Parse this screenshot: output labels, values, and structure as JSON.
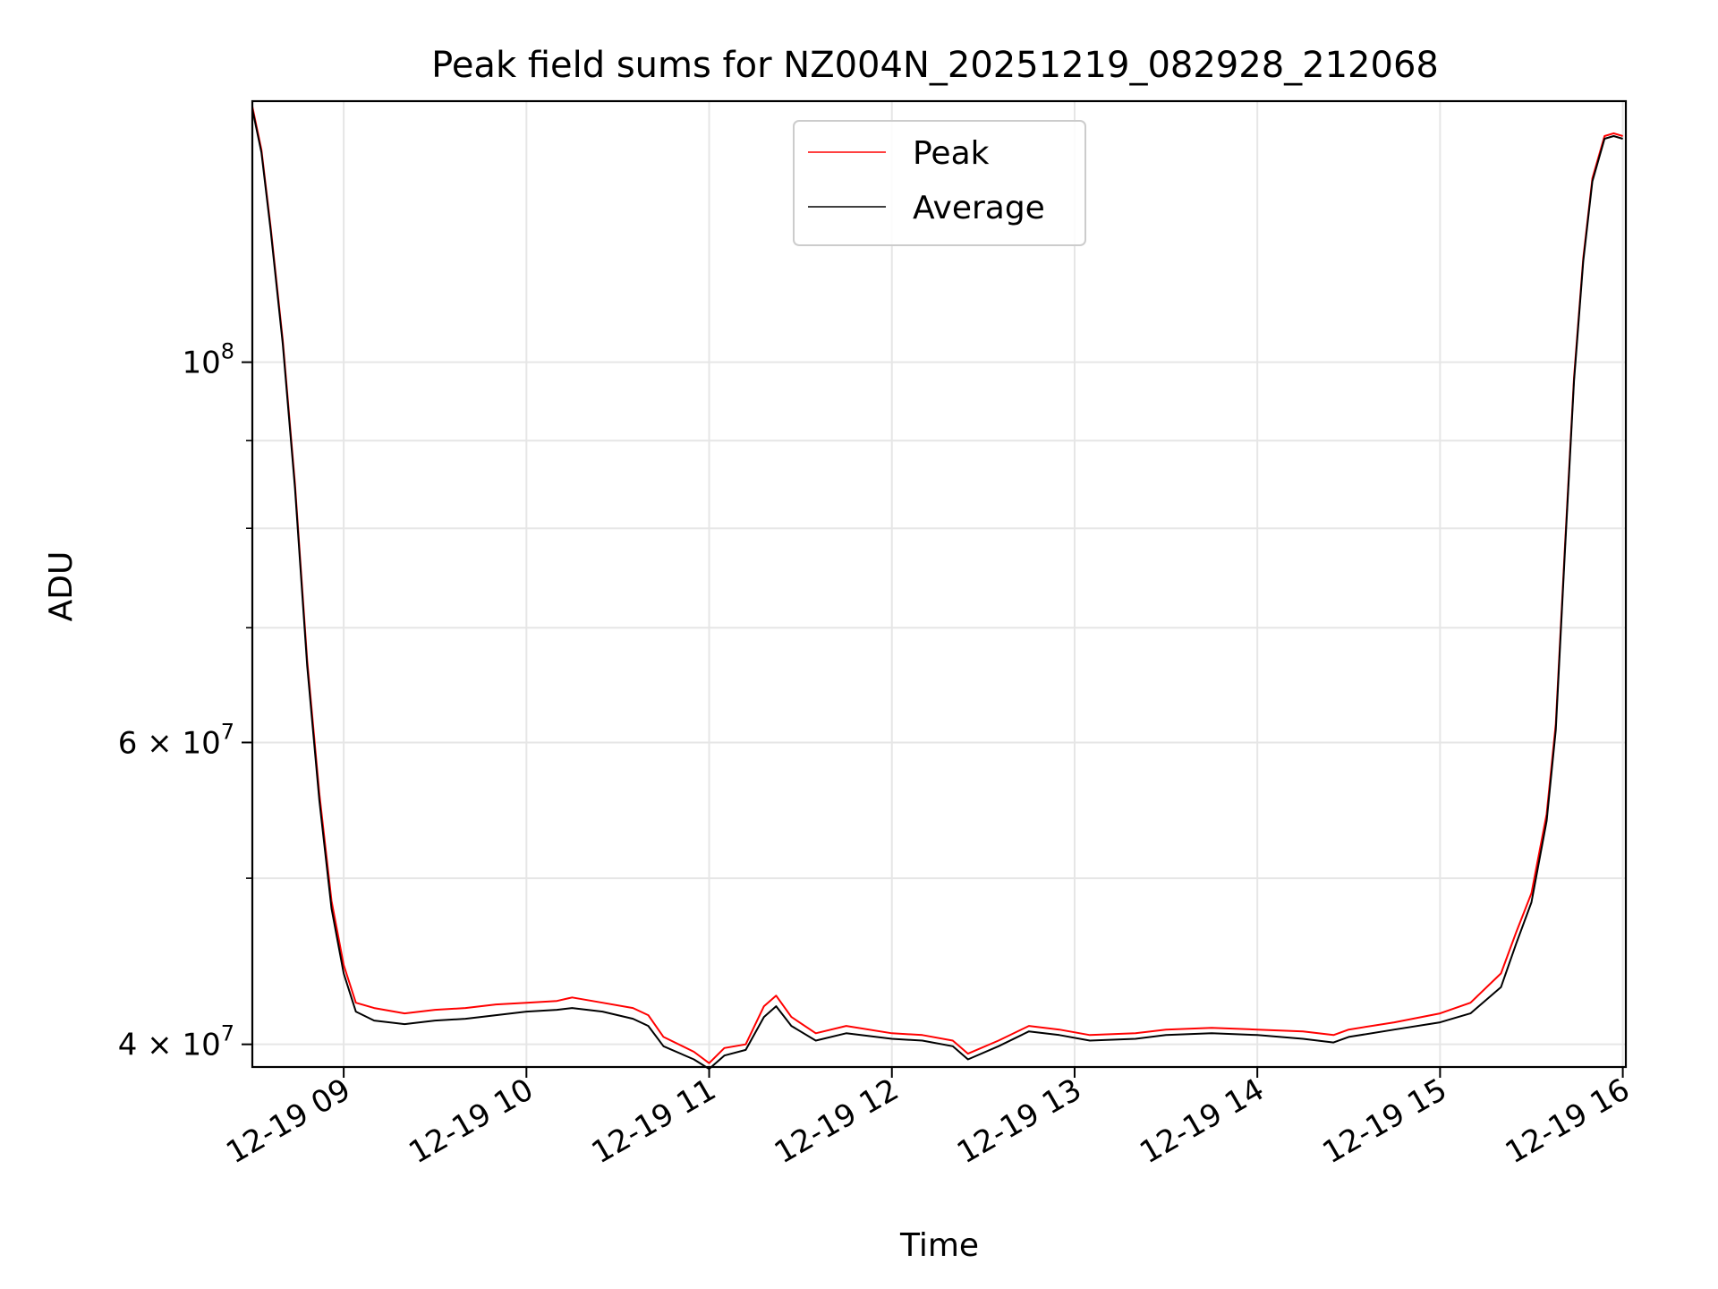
{
  "chart_data": {
    "type": "line",
    "title": "Peak field sums for NZ004N_20251219_082928_212068",
    "xlabel": "Time",
    "ylabel": "ADU",
    "yscale": "log",
    "ylim": [
      38800000,
      142000000
    ],
    "xlim": [
      "2025-12-19T08:30:00",
      "2025-12-19T16:01:00"
    ],
    "grid": true,
    "legend_position": "top-center",
    "x_ticks": [
      {
        "t": "2025-12-19T09:00",
        "label": "12-19 09"
      },
      {
        "t": "2025-12-19T10:00",
        "label": "12-19 10"
      },
      {
        "t": "2025-12-19T11:00",
        "label": "12-19 11"
      },
      {
        "t": "2025-12-19T12:00",
        "label": "12-19 12"
      },
      {
        "t": "2025-12-19T13:00",
        "label": "12-19 13"
      },
      {
        "t": "2025-12-19T14:00",
        "label": "12-19 14"
      },
      {
        "t": "2025-12-19T15:00",
        "label": "12-19 15"
      },
      {
        "t": "2025-12-19T16:00",
        "label": "12-19 16"
      }
    ],
    "y_ticks": [
      {
        "value": 40000000,
        "base": "4",
        "exp": "7"
      },
      {
        "value": 60000000,
        "base": "6",
        "exp": "7"
      },
      {
        "value": 100000000,
        "base": "",
        "exp": "8"
      }
    ],
    "y_minor_ticks": [
      50000000,
      70000000,
      80000000,
      90000000
    ],
    "series": [
      {
        "name": "Peak",
        "color": "#ff0000",
        "points": [
          [
            "2025-12-19T08:30",
            141000000
          ],
          [
            "2025-12-19T08:33",
            133000000
          ],
          [
            "2025-12-19T08:36",
            120000000
          ],
          [
            "2025-12-19T08:40",
            103000000
          ],
          [
            "2025-12-19T08:44",
            85000000
          ],
          [
            "2025-12-19T08:48",
            67000000
          ],
          [
            "2025-12-19T08:52",
            56000000
          ],
          [
            "2025-12-19T08:56",
            48500000
          ],
          [
            "2025-12-19T09:00",
            44500000
          ],
          [
            "2025-12-19T09:04",
            42300000
          ],
          [
            "2025-12-19T09:10",
            42000000
          ],
          [
            "2025-12-19T09:20",
            41700000
          ],
          [
            "2025-12-19T09:30",
            41900000
          ],
          [
            "2025-12-19T09:40",
            42000000
          ],
          [
            "2025-12-19T09:50",
            42200000
          ],
          [
            "2025-12-19T10:00",
            42300000
          ],
          [
            "2025-12-19T10:10",
            42400000
          ],
          [
            "2025-12-19T10:15",
            42600000
          ],
          [
            "2025-12-19T10:25",
            42300000
          ],
          [
            "2025-12-19T10:35",
            42000000
          ],
          [
            "2025-12-19T10:40",
            41600000
          ],
          [
            "2025-12-19T10:45",
            40400000
          ],
          [
            "2025-12-19T10:55",
            39600000
          ],
          [
            "2025-12-19T11:00",
            39000000
          ],
          [
            "2025-12-19T11:05",
            39800000
          ],
          [
            "2025-12-19T11:12",
            40000000
          ],
          [
            "2025-12-19T11:18",
            42100000
          ],
          [
            "2025-12-19T11:22",
            42700000
          ],
          [
            "2025-12-19T11:27",
            41500000
          ],
          [
            "2025-12-19T11:35",
            40600000
          ],
          [
            "2025-12-19T11:45",
            41000000
          ],
          [
            "2025-12-19T12:00",
            40600000
          ],
          [
            "2025-12-19T12:10",
            40500000
          ],
          [
            "2025-12-19T12:20",
            40200000
          ],
          [
            "2025-12-19T12:25",
            39500000
          ],
          [
            "2025-12-19T12:35",
            40200000
          ],
          [
            "2025-12-19T12:45",
            41000000
          ],
          [
            "2025-12-19T12:55",
            40800000
          ],
          [
            "2025-12-19T13:05",
            40500000
          ],
          [
            "2025-12-19T13:20",
            40600000
          ],
          [
            "2025-12-19T13:30",
            40800000
          ],
          [
            "2025-12-19T13:45",
            40900000
          ],
          [
            "2025-12-19T14:00",
            40800000
          ],
          [
            "2025-12-19T14:15",
            40700000
          ],
          [
            "2025-12-19T14:25",
            40500000
          ],
          [
            "2025-12-19T14:30",
            40800000
          ],
          [
            "2025-12-19T14:45",
            41200000
          ],
          [
            "2025-12-19T15:00",
            41700000
          ],
          [
            "2025-12-19T15:10",
            42300000
          ],
          [
            "2025-12-19T15:20",
            44000000
          ],
          [
            "2025-12-19T15:25",
            46500000
          ],
          [
            "2025-12-19T15:30",
            49000000
          ],
          [
            "2025-12-19T15:35",
            54500000
          ],
          [
            "2025-12-19T15:38",
            61500000
          ],
          [
            "2025-12-19T15:41",
            78000000
          ],
          [
            "2025-12-19T15:44",
            98000000
          ],
          [
            "2025-12-19T15:47",
            115000000
          ],
          [
            "2025-12-19T15:50",
            128000000
          ],
          [
            "2025-12-19T15:54",
            135500000
          ],
          [
            "2025-12-19T15:57",
            136000000
          ],
          [
            "2025-12-19T16:00",
            135500000
          ]
        ]
      },
      {
        "name": "Average",
        "color": "#000000",
        "points": [
          [
            "2025-12-19T08:30",
            140500000
          ],
          [
            "2025-12-19T08:33",
            132500000
          ],
          [
            "2025-12-19T08:36",
            119500000
          ],
          [
            "2025-12-19T08:40",
            102500000
          ],
          [
            "2025-12-19T08:44",
            84500000
          ],
          [
            "2025-12-19T08:48",
            66500000
          ],
          [
            "2025-12-19T08:52",
            55500000
          ],
          [
            "2025-12-19T08:56",
            48000000
          ],
          [
            "2025-12-19T09:00",
            44000000
          ],
          [
            "2025-12-19T09:04",
            41800000
          ],
          [
            "2025-12-19T09:10",
            41300000
          ],
          [
            "2025-12-19T09:20",
            41100000
          ],
          [
            "2025-12-19T09:30",
            41300000
          ],
          [
            "2025-12-19T09:40",
            41400000
          ],
          [
            "2025-12-19T09:50",
            41600000
          ],
          [
            "2025-12-19T10:00",
            41800000
          ],
          [
            "2025-12-19T10:10",
            41900000
          ],
          [
            "2025-12-19T10:15",
            42000000
          ],
          [
            "2025-12-19T10:25",
            41800000
          ],
          [
            "2025-12-19T10:35",
            41400000
          ],
          [
            "2025-12-19T10:40",
            41000000
          ],
          [
            "2025-12-19T10:45",
            39900000
          ],
          [
            "2025-12-19T10:55",
            39200000
          ],
          [
            "2025-12-19T11:00",
            38700000
          ],
          [
            "2025-12-19T11:05",
            39400000
          ],
          [
            "2025-12-19T11:12",
            39700000
          ],
          [
            "2025-12-19T11:18",
            41500000
          ],
          [
            "2025-12-19T11:22",
            42100000
          ],
          [
            "2025-12-19T11:27",
            41000000
          ],
          [
            "2025-12-19T11:35",
            40200000
          ],
          [
            "2025-12-19T11:45",
            40600000
          ],
          [
            "2025-12-19T12:00",
            40300000
          ],
          [
            "2025-12-19T12:10",
            40200000
          ],
          [
            "2025-12-19T12:20",
            39900000
          ],
          [
            "2025-12-19T12:25",
            39200000
          ],
          [
            "2025-12-19T12:35",
            39900000
          ],
          [
            "2025-12-19T12:45",
            40700000
          ],
          [
            "2025-12-19T12:55",
            40500000
          ],
          [
            "2025-12-19T13:05",
            40200000
          ],
          [
            "2025-12-19T13:20",
            40300000
          ],
          [
            "2025-12-19T13:30",
            40500000
          ],
          [
            "2025-12-19T13:45",
            40600000
          ],
          [
            "2025-12-19T14:00",
            40500000
          ],
          [
            "2025-12-19T14:15",
            40300000
          ],
          [
            "2025-12-19T14:25",
            40100000
          ],
          [
            "2025-12-19T14:30",
            40400000
          ],
          [
            "2025-12-19T14:45",
            40800000
          ],
          [
            "2025-12-19T15:00",
            41200000
          ],
          [
            "2025-12-19T15:10",
            41700000
          ],
          [
            "2025-12-19T15:20",
            43200000
          ],
          [
            "2025-12-19T15:25",
            45800000
          ],
          [
            "2025-12-19T15:30",
            48400000
          ],
          [
            "2025-12-19T15:35",
            54000000
          ],
          [
            "2025-12-19T15:38",
            61000000
          ],
          [
            "2025-12-19T15:41",
            77500000
          ],
          [
            "2025-12-19T15:44",
            97500000
          ],
          [
            "2025-12-19T15:47",
            114500000
          ],
          [
            "2025-12-19T15:50",
            127500000
          ],
          [
            "2025-12-19T15:54",
            135000000
          ],
          [
            "2025-12-19T15:57",
            135500000
          ],
          [
            "2025-12-19T16:00",
            135000000
          ]
        ]
      }
    ]
  }
}
